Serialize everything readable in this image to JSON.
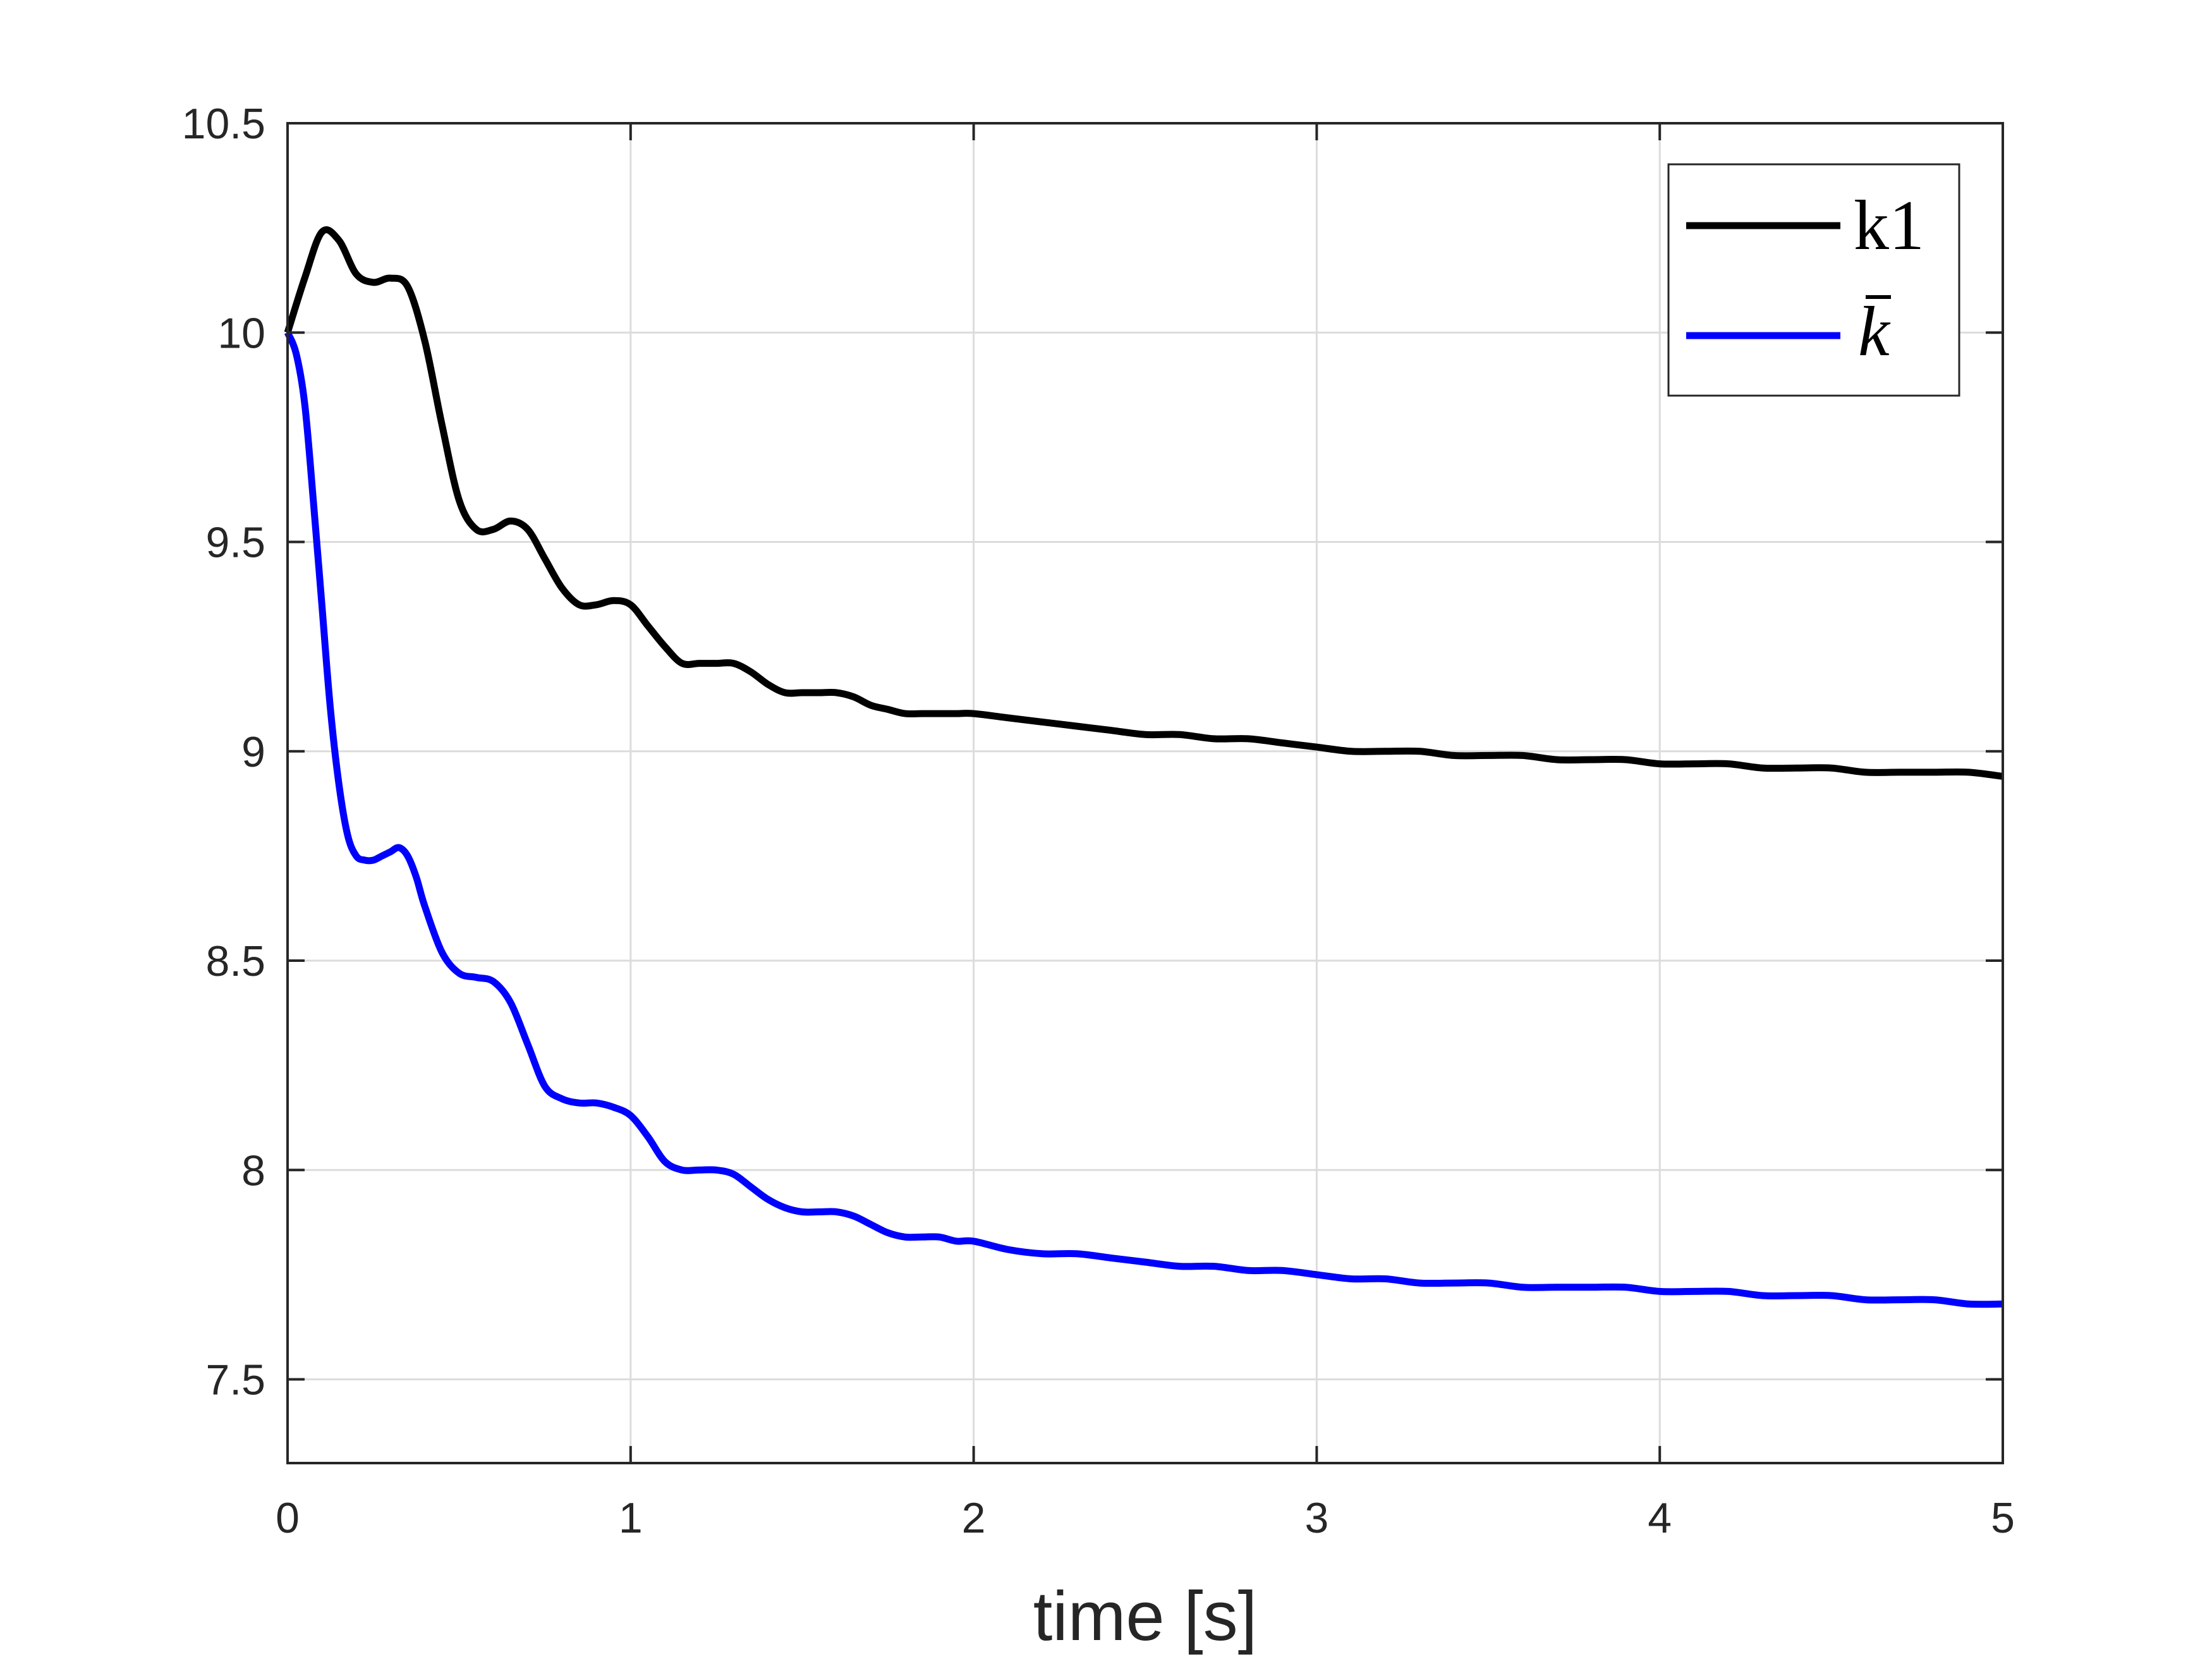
{
  "chart_data": {
    "type": "line",
    "title": "",
    "xlabel": "time [s]",
    "ylabel": "",
    "xlim": [
      0,
      5
    ],
    "ylim": [
      7.3,
      10.5
    ],
    "xticks": [
      0,
      1,
      2,
      3,
      4,
      5
    ],
    "xtick_labels": [
      "0",
      "1",
      "2",
      "3",
      "4",
      "5"
    ],
    "yticks": [
      7.5,
      8,
      8.5,
      9,
      9.5,
      10,
      10.5
    ],
    "ytick_labels": [
      "7.5",
      "8",
      "8.5",
      "9",
      "9.5",
      "10",
      "10.5"
    ],
    "grid": true,
    "legend_position": "top-right",
    "series": [
      {
        "name": "k1",
        "color": "#000000",
        "x": [
          0,
          0.05,
          0.1,
          0.15,
          0.2,
          0.25,
          0.3,
          0.35,
          0.4,
          0.45,
          0.5,
          0.55,
          0.6,
          0.65,
          0.7,
          0.75,
          0.8,
          0.85,
          0.9,
          0.95,
          1.0,
          1.05,
          1.1,
          1.15,
          1.2,
          1.25,
          1.3,
          1.35,
          1.4,
          1.45,
          1.5,
          1.55,
          1.6,
          1.65,
          1.7,
          1.75,
          1.8,
          1.85,
          1.9,
          1.95,
          2.0,
          2.1,
          2.2,
          2.3,
          2.4,
          2.5,
          2.6,
          2.7,
          2.8,
          2.9,
          3.0,
          3.1,
          3.2,
          3.3,
          3.4,
          3.5,
          3.6,
          3.7,
          3.8,
          3.9,
          4.0,
          4.1,
          4.2,
          4.3,
          4.4,
          4.5,
          4.6,
          4.7,
          4.8,
          4.9,
          5.0
        ],
        "y": [
          10.0,
          10.13,
          10.24,
          10.22,
          10.14,
          10.12,
          10.13,
          10.11,
          9.98,
          9.78,
          9.6,
          9.53,
          9.53,
          9.55,
          9.53,
          9.46,
          9.39,
          9.35,
          9.35,
          9.36,
          9.35,
          9.3,
          9.25,
          9.21,
          9.21,
          9.21,
          9.21,
          9.19,
          9.16,
          9.14,
          9.14,
          9.14,
          9.14,
          9.13,
          9.11,
          9.1,
          9.09,
          9.09,
          9.09,
          9.09,
          9.09,
          9.08,
          9.07,
          9.06,
          9.05,
          9.04,
          9.04,
          9.03,
          9.03,
          9.02,
          9.01,
          9.0,
          9.0,
          9.0,
          8.99,
          8.99,
          8.99,
          8.98,
          8.98,
          8.98,
          8.97,
          8.97,
          8.97,
          8.96,
          8.96,
          8.96,
          8.95,
          8.95,
          8.95,
          8.95,
          8.94
        ]
      },
      {
        "name": "k̄",
        "color": "#0000ff",
        "x": [
          0,
          0.025,
          0.05,
          0.075,
          0.1,
          0.125,
          0.15,
          0.175,
          0.2,
          0.225,
          0.25,
          0.275,
          0.3,
          0.325,
          0.35,
          0.375,
          0.4,
          0.45,
          0.5,
          0.55,
          0.6,
          0.65,
          0.7,
          0.75,
          0.8,
          0.85,
          0.9,
          0.95,
          1.0,
          1.05,
          1.1,
          1.15,
          1.2,
          1.25,
          1.3,
          1.35,
          1.4,
          1.45,
          1.5,
          1.55,
          1.6,
          1.65,
          1.7,
          1.75,
          1.8,
          1.85,
          1.9,
          1.95,
          2.0,
          2.1,
          2.2,
          2.3,
          2.4,
          2.5,
          2.6,
          2.7,
          2.8,
          2.9,
          3.0,
          3.1,
          3.2,
          3.3,
          3.4,
          3.5,
          3.6,
          3.7,
          3.8,
          3.9,
          4.0,
          4.1,
          4.2,
          4.3,
          4.4,
          4.5,
          4.6,
          4.7,
          4.8,
          4.9,
          5.0
        ],
        "y": [
          10.0,
          9.95,
          9.83,
          9.6,
          9.35,
          9.1,
          8.92,
          8.8,
          8.75,
          8.74,
          8.74,
          8.75,
          8.76,
          8.77,
          8.75,
          8.7,
          8.63,
          8.52,
          8.47,
          8.46,
          8.45,
          8.4,
          8.3,
          8.2,
          8.17,
          8.16,
          8.16,
          8.15,
          8.13,
          8.08,
          8.02,
          8.0,
          8.0,
          8.0,
          7.99,
          7.96,
          7.93,
          7.91,
          7.9,
          7.9,
          7.9,
          7.89,
          7.87,
          7.85,
          7.84,
          7.84,
          7.84,
          7.83,
          7.83,
          7.81,
          7.8,
          7.8,
          7.79,
          7.78,
          7.77,
          7.77,
          7.76,
          7.76,
          7.75,
          7.74,
          7.74,
          7.73,
          7.73,
          7.73,
          7.72,
          7.72,
          7.72,
          7.72,
          7.71,
          7.71,
          7.71,
          7.7,
          7.7,
          7.7,
          7.69,
          7.69,
          7.69,
          7.68,
          7.68
        ]
      }
    ]
  },
  "legend": {
    "items": [
      {
        "label": "k1",
        "color": "#000000"
      },
      {
        "label": "k",
        "color": "#0000ff"
      }
    ]
  }
}
